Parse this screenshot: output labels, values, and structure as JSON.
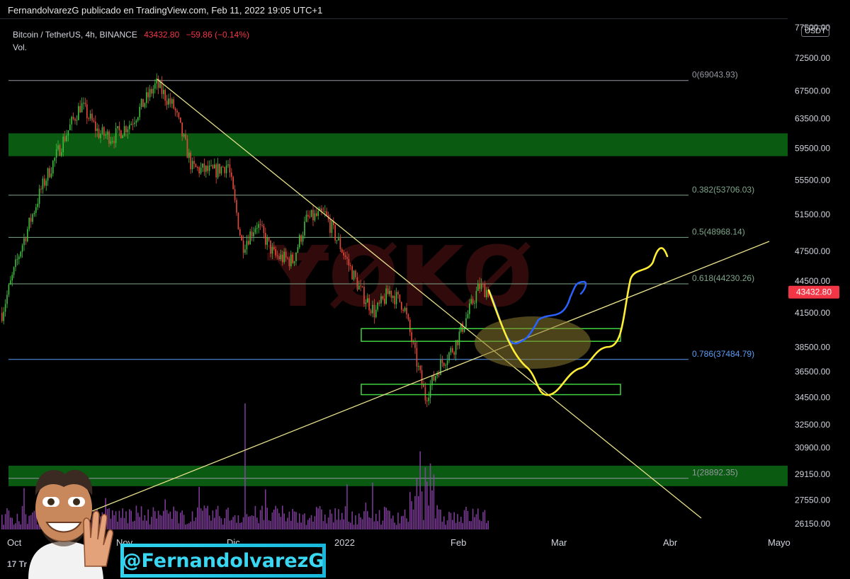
{
  "header": {
    "title": "FernandolvarezG publicado en TradingView.com, Feb 11, 2022 19:05 UTC+1"
  },
  "symbol": {
    "name": "Bitcoin / TetherUS, 4h, BINANCE",
    "price": "43432.80",
    "change": "−59.86 (−0.14%)",
    "volume_label": "Vol.",
    "currency": "USDT"
  },
  "watermark": "ɎØKØ",
  "handle": "@FernandolvarezG",
  "tradingview_logo": "17 Tr",
  "colors": {
    "up": "#26a69a",
    "down": "#ef5350",
    "zone": "#0a5a12",
    "trendline": "#e8e08a",
    "fib": "#787b86",
    "fib786": "#5b9cf6",
    "projection_yellow": "#ffee33",
    "projection_blue": "#2962ff",
    "volume": "#8e44ad",
    "price_tag": "#f23645"
  },
  "chart_data": {
    "type": "candlestick",
    "symbol": "BTCUSDT",
    "timeframe": "4h",
    "exchange": "BINANCE",
    "last_price": 43432.8,
    "y_axis": {
      "ticks": [
        "77500.00",
        "72500.00",
        "67500.00",
        "63500.00",
        "59500.00",
        "55500.00",
        "51500.00",
        "47500.00",
        "44500.00",
        "41500.00",
        "38500.00",
        "36500.00",
        "34500.00",
        "32500.00",
        "30900.00",
        "29150.00",
        "27550.00",
        "26150.00"
      ],
      "scale": "log"
    },
    "x_axis": {
      "ticks": [
        "Oct",
        "Nov",
        "Dic",
        "2022",
        "Feb",
        "Mar",
        "Abr",
        "Mayo"
      ]
    },
    "fibonacci": [
      {
        "level": "0",
        "price": 69043.93,
        "label": "0(69043.93)"
      },
      {
        "level": "0.382",
        "price": 53706.03,
        "label": "0.382(53706.03)"
      },
      {
        "level": "0.5",
        "price": 48968.14,
        "label": "0.5(48968.14)"
      },
      {
        "level": "0.618",
        "price": 44230.26,
        "label": "0.618(44230.26)"
      },
      {
        "level": "0.786",
        "price": 37484.79,
        "label": "0.786(37484.79)"
      },
      {
        "level": "1",
        "price": 28892.35,
        "label": "1(28892.35)"
      }
    ],
    "zones": [
      {
        "name": "resistance",
        "low": 58500,
        "high": 61500
      },
      {
        "name": "support",
        "low": 28400,
        "high": 29700
      }
    ],
    "boxes": [
      {
        "name": "demand-upper",
        "low": 39000,
        "high": 40100
      },
      {
        "name": "demand-lower",
        "low": 34700,
        "high": 35500
      }
    ],
    "price_path": [
      {
        "date": "2021-09-28",
        "price": 41500
      },
      {
        "date": "2021-10-03",
        "price": 47500
      },
      {
        "date": "2021-10-09",
        "price": 54500
      },
      {
        "date": "2021-10-15",
        "price": 60500
      },
      {
        "date": "2021-10-20",
        "price": 65500
      },
      {
        "date": "2021-10-25",
        "price": 61500
      },
      {
        "date": "2021-10-29",
        "price": 61000
      },
      {
        "date": "2021-11-03",
        "price": 63000
      },
      {
        "date": "2021-11-10",
        "price": 68500
      },
      {
        "date": "2021-11-15",
        "price": 65000
      },
      {
        "date": "2021-11-20",
        "price": 57000
      },
      {
        "date": "2021-11-26",
        "price": 56500
      },
      {
        "date": "2021-11-30",
        "price": 57500
      },
      {
        "date": "2021-12-04",
        "price": 48000
      },
      {
        "date": "2021-12-08",
        "price": 50500
      },
      {
        "date": "2021-12-13",
        "price": 47000
      },
      {
        "date": "2021-12-18",
        "price": 46500
      },
      {
        "date": "2021-12-22",
        "price": 51000
      },
      {
        "date": "2021-12-27",
        "price": 51500
      },
      {
        "date": "2022-01-01",
        "price": 47500
      },
      {
        "date": "2022-01-06",
        "price": 43500
      },
      {
        "date": "2022-01-10",
        "price": 41500
      },
      {
        "date": "2022-01-14",
        "price": 43500
      },
      {
        "date": "2022-01-18",
        "price": 42200
      },
      {
        "date": "2022-01-21",
        "price": 38000
      },
      {
        "date": "2022-01-24",
        "price": 34500
      },
      {
        "date": "2022-01-28",
        "price": 37000
      },
      {
        "date": "2022-02-01",
        "price": 38500
      },
      {
        "date": "2022-02-05",
        "price": 41500
      },
      {
        "date": "2022-02-08",
        "price": 44000
      },
      {
        "date": "2022-02-11",
        "price": 43432.8
      }
    ]
  }
}
